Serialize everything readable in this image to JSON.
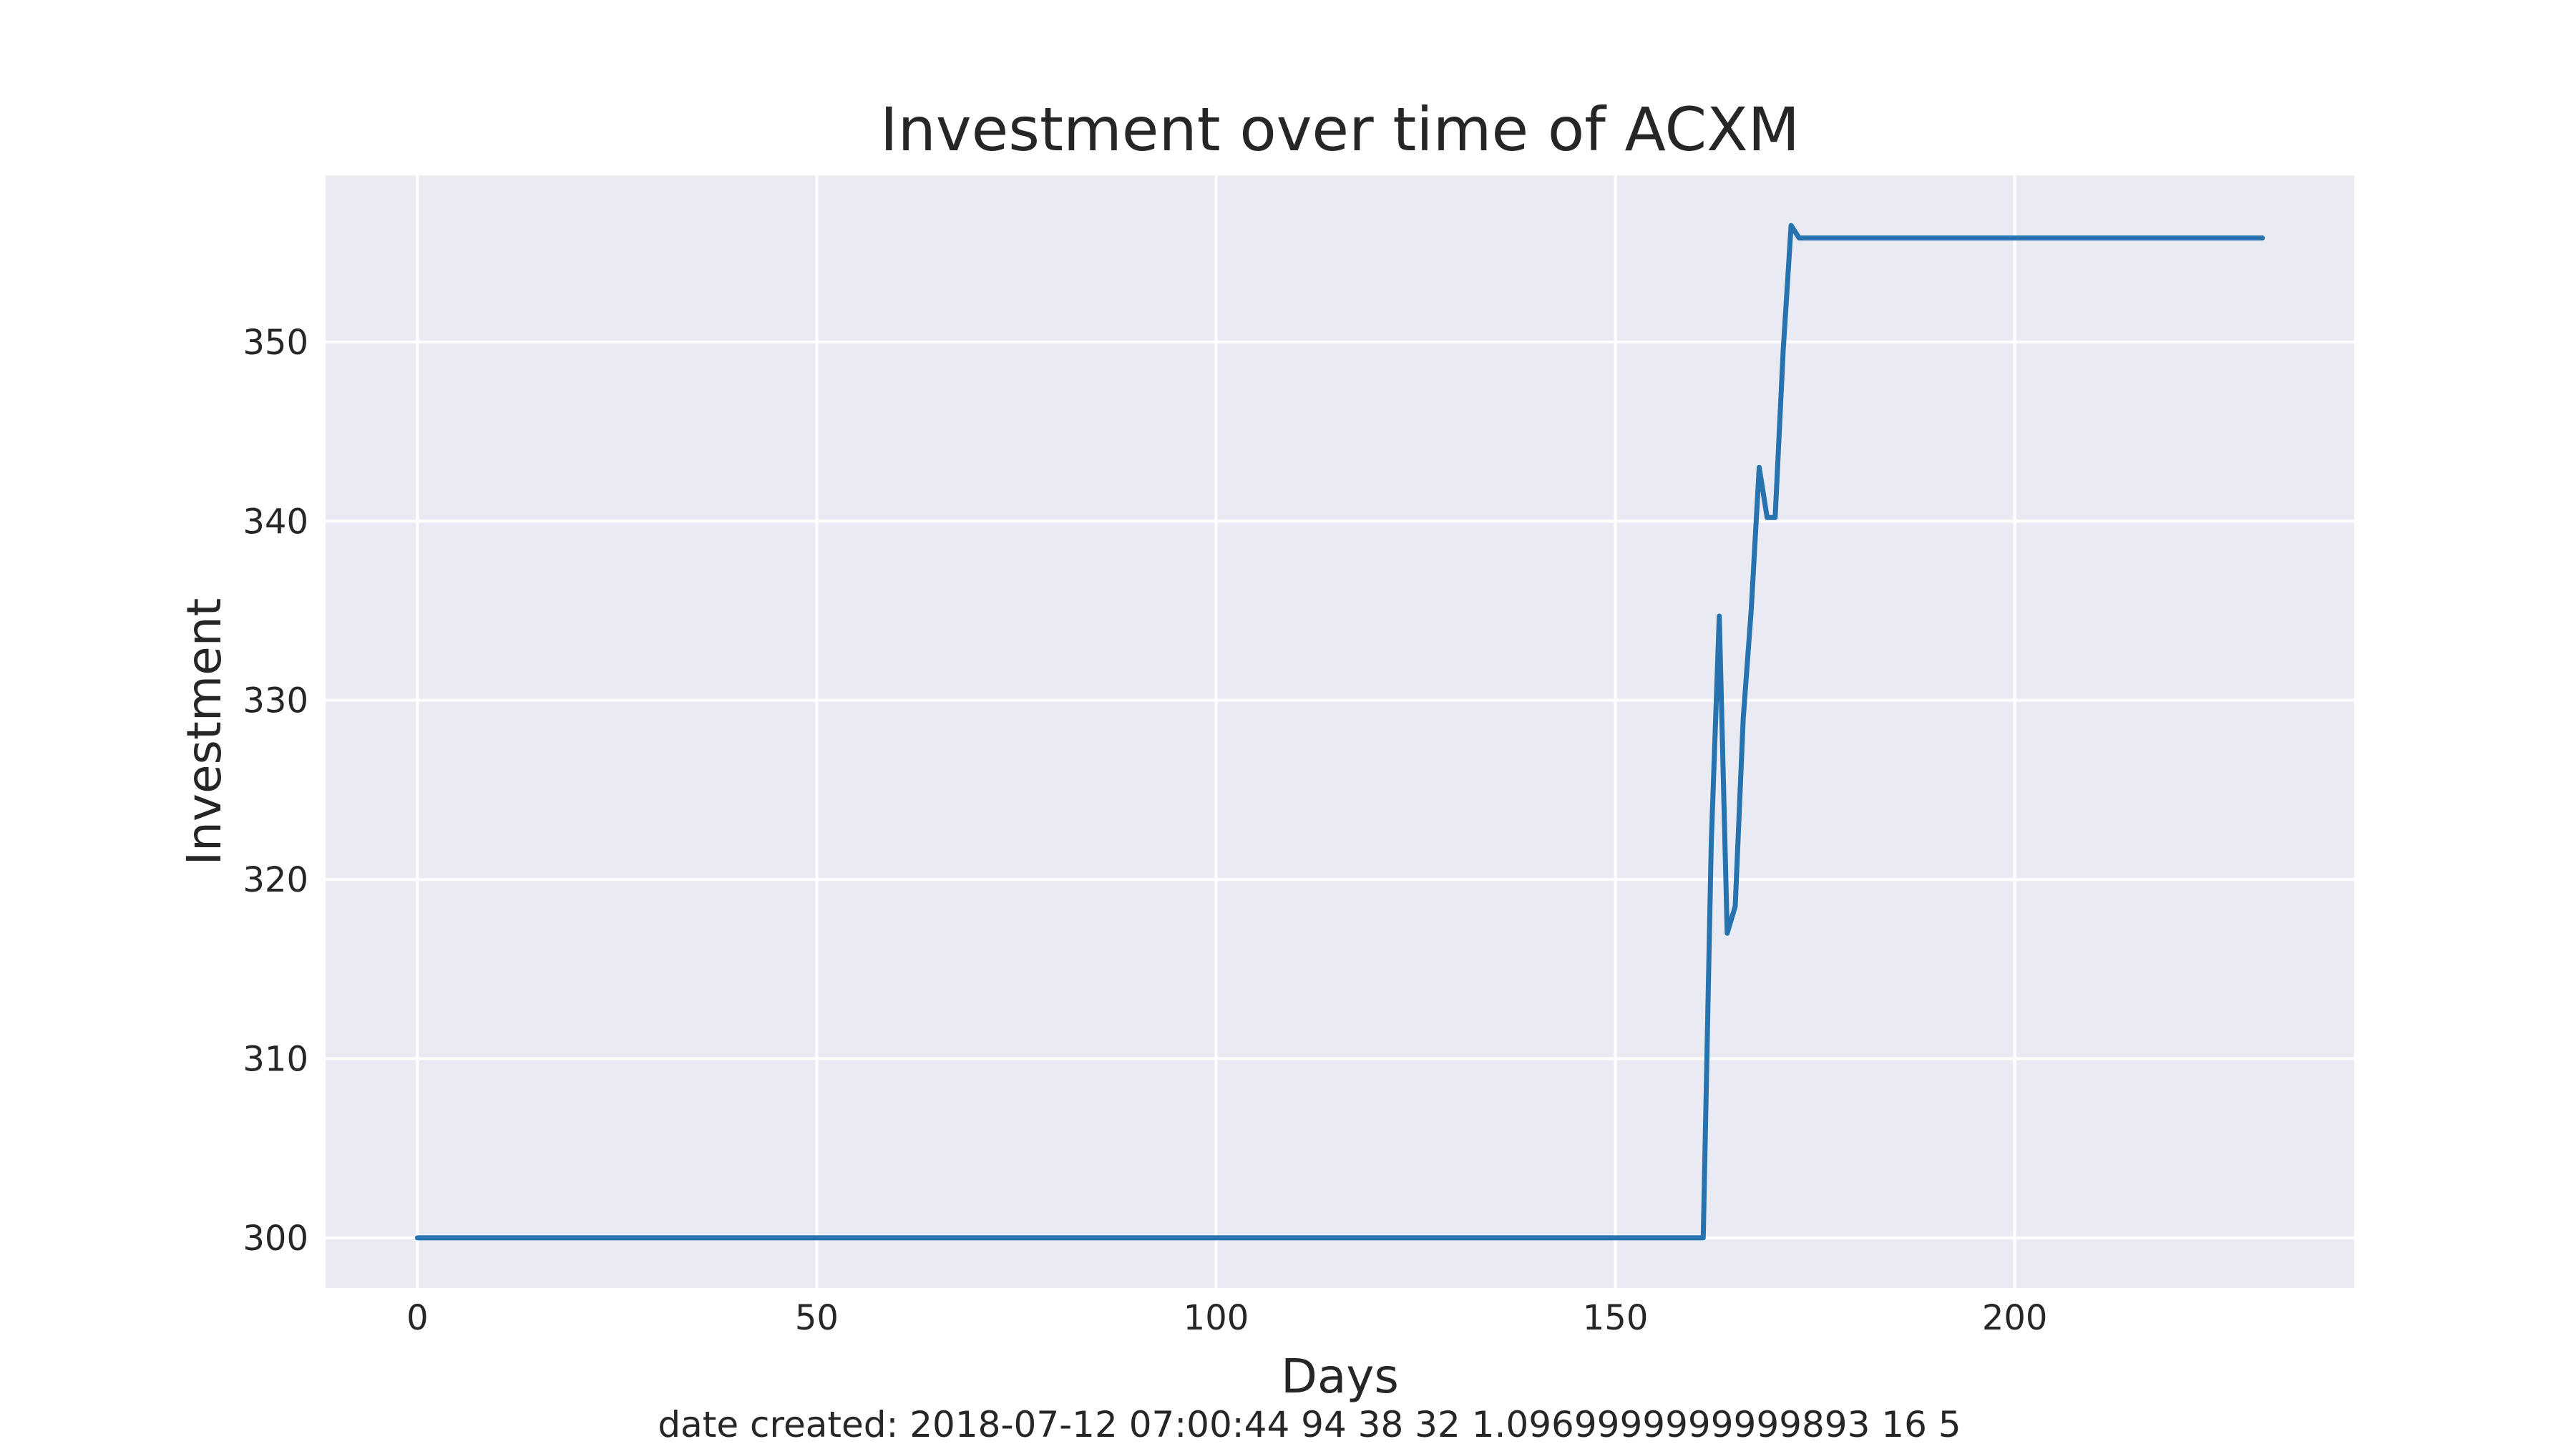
{
  "chart_data": {
    "type": "line",
    "title": "Investment over time of ACXM",
    "xlabel": "Days",
    "ylabel": "Investment",
    "xlim": [
      -11.5,
      242.5
    ],
    "ylim": [
      297.2,
      359.3
    ],
    "x_ticks": [
      0,
      50,
      100,
      150,
      200
    ],
    "y_ticks": [
      300,
      310,
      320,
      330,
      340,
      350
    ],
    "grid": true,
    "legend": "none",
    "series": [
      {
        "color": "#2673b0",
        "x": [
          0,
          161,
          162,
          163,
          164,
          165,
          166,
          167,
          168,
          169,
          170,
          171,
          172,
          173,
          231
        ],
        "y": [
          300,
          300,
          322,
          334.7,
          317,
          318.5,
          329,
          335,
          343,
          340.2,
          340.2,
          349.5,
          356.5,
          355.8,
          355.8
        ]
      }
    ]
  },
  "footer": {
    "text": "date created: 2018-07-12 07:00:44 94 38 32 1.0969999999999893 16 5"
  },
  "colors": {
    "plot_background": "#eaeaf2",
    "grid": "#ffffff",
    "line": "#2673b0",
    "text": "#262626"
  }
}
